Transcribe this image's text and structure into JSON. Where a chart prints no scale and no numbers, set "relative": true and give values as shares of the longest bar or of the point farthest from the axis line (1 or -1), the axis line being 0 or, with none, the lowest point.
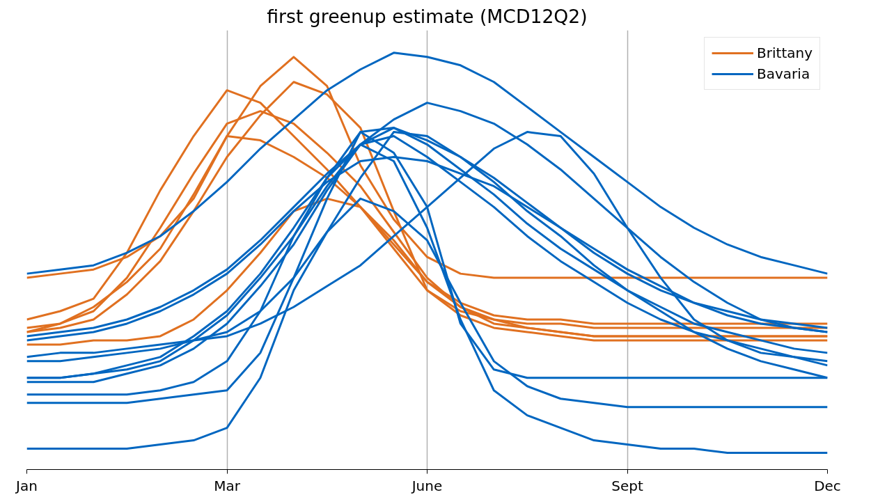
{
  "chart_data": {
    "type": "line",
    "title": "first greenup estimate (MCD12Q2)",
    "relative": true,
    "categories": [
      "Jan",
      null,
      null,
      null,
      null,
      null,
      "Mar",
      null,
      null,
      null,
      null,
      null,
      "June",
      null,
      null,
      null,
      null,
      null,
      "Sept",
      null,
      null,
      null,
      null,
      null,
      "Dec"
    ],
    "grid": "x",
    "legend": "top right",
    "line_style": "solid",
    "marker": "none",
    "series": [
      {
        "name": "Brittany",
        "color": "#e07020",
        "values": [
          0.46,
          0.47,
          0.48,
          0.51,
          0.56,
          0.65,
          0.8,
          0.79,
          0.75,
          0.7,
          0.63,
          0.54,
          0.45,
          0.39,
          0.36,
          0.34,
          0.33,
          0.32,
          0.32,
          0.32,
          0.32,
          0.32,
          0.32,
          0.32,
          0.32
        ]
      },
      {
        "color": "#e07020",
        "values": [
          0.36,
          0.38,
          0.41,
          0.52,
          0.67,
          0.8,
          0.91,
          0.88,
          0.8,
          0.72,
          0.63,
          0.53,
          0.43,
          0.38,
          0.36,
          0.35,
          0.35,
          0.34,
          0.34,
          0.34,
          0.34,
          0.34,
          0.34,
          0.34,
          0.34
        ]
      },
      {
        "color": "#e07020",
        "values": [
          0.34,
          0.35,
          0.38,
          0.46,
          0.58,
          0.71,
          0.83,
          0.86,
          0.83,
          0.76,
          0.68,
          0.57,
          0.46,
          0.39,
          0.35,
          0.34,
          0.33,
          0.32,
          0.32,
          0.32,
          0.32,
          0.32,
          0.32,
          0.32,
          0.32
        ]
      },
      {
        "color": "#e07020",
        "values": [
          0.33,
          0.35,
          0.39,
          0.45,
          0.53,
          0.66,
          0.8,
          0.92,
          0.99,
          0.92,
          0.73,
          0.6,
          0.51,
          0.47,
          0.46,
          0.46,
          0.46,
          0.46,
          0.46,
          0.46,
          0.46,
          0.46,
          0.46,
          0.46,
          0.46
        ]
      },
      {
        "color": "#e07020",
        "values": [
          0.33,
          0.34,
          0.36,
          0.42,
          0.5,
          0.62,
          0.75,
          0.85,
          0.93,
          0.9,
          0.82,
          0.62,
          0.43,
          0.37,
          0.34,
          0.33,
          0.32,
          0.31,
          0.31,
          0.31,
          0.31,
          0.31,
          0.31,
          0.31,
          0.31
        ]
      },
      {
        "color": "#e07020",
        "values": [
          0.3,
          0.3,
          0.31,
          0.31,
          0.32,
          0.36,
          0.43,
          0.52,
          0.62,
          0.65,
          0.63,
          0.55,
          0.45,
          0.4,
          0.37,
          0.36,
          0.36,
          0.35,
          0.35,
          0.35,
          0.35,
          0.35,
          0.35,
          0.35,
          0.35
        ]
      },
      {
        "name": "Bavaria",
        "color": "#0066c0",
        "values": [
          0.47,
          0.48,
          0.49,
          0.52,
          0.56,
          0.62,
          0.69,
          0.77,
          0.84,
          0.91,
          0.96,
          1.0,
          0.99,
          0.97,
          0.93,
          0.87,
          0.81,
          0.75,
          0.69,
          0.63,
          0.58,
          0.54,
          0.51,
          0.49,
          0.47
        ]
      },
      {
        "color": "#0066c0",
        "values": [
          0.05,
          0.05,
          0.05,
          0.05,
          0.06,
          0.07,
          0.1,
          0.22,
          0.43,
          0.57,
          0.65,
          0.62,
          0.55,
          0.4,
          0.26,
          0.2,
          0.17,
          0.16,
          0.15,
          0.15,
          0.15,
          0.15,
          0.15,
          0.15,
          0.15
        ]
      },
      {
        "color": "#0066c0",
        "values": [
          0.16,
          0.16,
          0.16,
          0.16,
          0.17,
          0.18,
          0.19,
          0.28,
          0.46,
          0.65,
          0.81,
          0.76,
          0.63,
          0.35,
          0.24,
          0.22,
          0.22,
          0.22,
          0.22,
          0.22,
          0.22,
          0.22,
          0.22,
          0.22,
          0.22
        ]
      },
      {
        "color": "#0066c0",
        "values": [
          0.18,
          0.18,
          0.18,
          0.18,
          0.19,
          0.21,
          0.26,
          0.38,
          0.56,
          0.7,
          0.78,
          0.74,
          0.58,
          0.36,
          0.19,
          0.13,
          0.1,
          0.07,
          0.06,
          0.05,
          0.05,
          0.04,
          0.04,
          0.04,
          0.04
        ]
      },
      {
        "color": "#0066c0",
        "values": [
          0.27,
          0.28,
          0.28,
          0.29,
          0.3,
          0.31,
          0.32,
          0.35,
          0.39,
          0.44,
          0.49,
          0.56,
          0.63,
          0.7,
          0.77,
          0.81,
          0.8,
          0.71,
          0.58,
          0.46,
          0.36,
          0.31,
          0.28,
          0.27,
          0.26
        ]
      },
      {
        "color": "#0066c0",
        "values": [
          0.32,
          0.33,
          0.34,
          0.36,
          0.39,
          0.43,
          0.48,
          0.55,
          0.63,
          0.71,
          0.78,
          0.84,
          0.88,
          0.86,
          0.83,
          0.78,
          0.72,
          0.65,
          0.58,
          0.51,
          0.45,
          0.4,
          0.36,
          0.34,
          0.33
        ]
      },
      {
        "color": "#0066c0",
        "values": [
          0.31,
          0.32,
          0.33,
          0.35,
          0.38,
          0.42,
          0.47,
          0.54,
          0.62,
          0.69,
          0.74,
          0.75,
          0.74,
          0.71,
          0.68,
          0.63,
          0.58,
          0.53,
          0.48,
          0.44,
          0.4,
          0.38,
          0.36,
          0.35,
          0.34
        ]
      },
      {
        "color": "#0066c0",
        "values": [
          0.22,
          0.22,
          0.23,
          0.25,
          0.27,
          0.32,
          0.38,
          0.47,
          0.58,
          0.7,
          0.81,
          0.82,
          0.79,
          0.75,
          0.7,
          0.64,
          0.58,
          0.52,
          0.47,
          0.43,
          0.4,
          0.37,
          0.35,
          0.34,
          0.33
        ]
      },
      {
        "color": "#0066c0",
        "values": [
          0.22,
          0.22,
          0.23,
          0.24,
          0.26,
          0.31,
          0.37,
          0.46,
          0.56,
          0.68,
          0.78,
          0.82,
          0.78,
          0.72,
          0.66,
          0.59,
          0.53,
          0.48,
          0.43,
          0.39,
          0.35,
          0.33,
          0.31,
          0.29,
          0.28
        ]
      },
      {
        "color": "#0066c0",
        "values": [
          0.21,
          0.21,
          0.21,
          0.23,
          0.25,
          0.29,
          0.35,
          0.44,
          0.54,
          0.67,
          0.78,
          0.8,
          0.75,
          0.69,
          0.63,
          0.56,
          0.5,
          0.45,
          0.4,
          0.36,
          0.33,
          0.31,
          0.29,
          0.27,
          0.25
        ]
      },
      {
        "color": "#0066c0",
        "values": [
          0.26,
          0.26,
          0.27,
          0.28,
          0.29,
          0.31,
          0.33,
          0.38,
          0.46,
          0.57,
          0.7,
          0.81,
          0.8,
          0.75,
          0.69,
          0.62,
          0.56,
          0.49,
          0.43,
          0.38,
          0.33,
          0.29,
          0.26,
          0.24,
          0.22
        ]
      }
    ]
  }
}
